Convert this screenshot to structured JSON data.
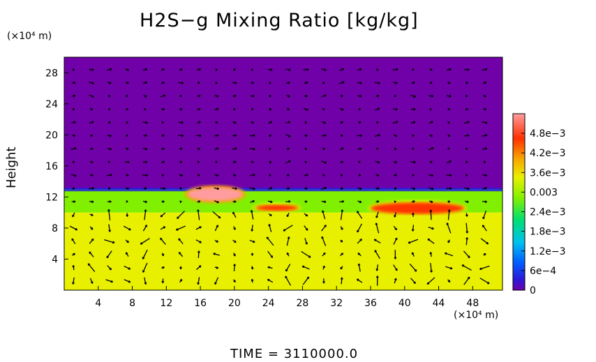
{
  "chart_data": {
    "type": "heatmap",
    "title": "H2S−g Mixing Ratio [kg/kg]",
    "xlabel": "",
    "ylabel": "Height",
    "x_unit": "(×10⁴ m)",
    "y_unit": "(×10⁴ m)",
    "xlim": [
      0,
      51.5
    ],
    "ylim": [
      0,
      30
    ],
    "x_ticks": [
      "4",
      "8",
      "12",
      "16",
      "20",
      "24",
      "28",
      "32",
      "36",
      "40",
      "44",
      "48"
    ],
    "x_tick_values": [
      4,
      8,
      12,
      16,
      20,
      24,
      28,
      32,
      36,
      40,
      44,
      48
    ],
    "y_ticks": [
      "4",
      "8",
      "12",
      "16",
      "20",
      "24",
      "28"
    ],
    "y_tick_values": [
      4,
      8,
      12,
      16,
      20,
      24,
      28
    ],
    "colorbar": {
      "range": [
        0,
        0.0054
      ],
      "ticks": [
        "4.8e−3",
        "4.2e−3",
        "3.6e−3",
        "0.003",
        "2.4e−3",
        "1.8e−3",
        "1.2e−3",
        "6e−4",
        "0"
      ],
      "tick_values": [
        0.0048,
        0.0042,
        0.0036,
        0.003,
        0.0024,
        0.0018,
        0.0012,
        0.0006,
        0
      ],
      "colors": [
        "#7000a8",
        "#2020e0",
        "#00c0f0",
        "#00e070",
        "#80f000",
        "#e8f000",
        "#f8a000",
        "#ff3000",
        "#ff9ca0"
      ]
    },
    "field_layers": [
      {
        "region": "lower layer",
        "height_range": [
          0,
          10
        ],
        "value": 0.0035
      },
      {
        "region": "transition band",
        "height_range": [
          10,
          13
        ],
        "value": 0.0028
      },
      {
        "region": "upper layer",
        "height_range": [
          13,
          30
        ],
        "value": 0
      }
    ],
    "hotspots": [
      {
        "x_range": [
          14.5,
          21
        ],
        "height_range": [
          11.5,
          13.2
        ],
        "value": 0.0052
      },
      {
        "x_range": [
          36,
          47
        ],
        "height_range": [
          9.8,
          11.3
        ],
        "value": 0.0046
      },
      {
        "x_range": [
          22.5,
          27.5
        ],
        "height_range": [
          10.2,
          11
        ],
        "value": 0.0044
      }
    ],
    "vectors": "wind field arrows overlaid on the plot"
  },
  "footer": {
    "time_label": "TIME  =  3110000.0"
  }
}
